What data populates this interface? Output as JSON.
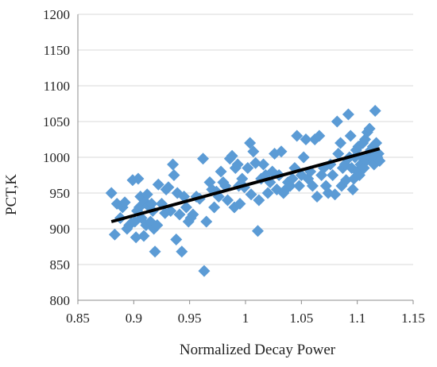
{
  "chart_data": {
    "type": "scatter",
    "title": "",
    "xlabel": "Normalized Decay Power",
    "ylabel": "PCT,K",
    "xlim": [
      0.85,
      1.15
    ],
    "ylim": [
      800,
      1200
    ],
    "x_ticks": [
      "0.85",
      "0.9",
      "0.95",
      "1",
      "1.05",
      "1.1",
      "1.15"
    ],
    "y_ticks": [
      "800",
      "850",
      "900",
      "950",
      "1000",
      "1050",
      "1100",
      "1150",
      "1200"
    ],
    "x_tick_values": [
      0.85,
      0.9,
      0.95,
      1.0,
      1.05,
      1.1,
      1.15
    ],
    "y_tick_values": [
      800,
      850,
      900,
      950,
      1000,
      1050,
      1100,
      1150,
      1200
    ],
    "grid": "horizontal",
    "legend": "none",
    "marker_color": "#5b9bd5",
    "trendline_color": "#000000",
    "trendline": {
      "x": [
        0.88,
        1.12
      ],
      "y": [
        910,
        1012
      ]
    },
    "series": [
      {
        "marker": "diamond",
        "points": [
          [
            0.88,
            950
          ],
          [
            0.883,
            892
          ],
          [
            0.885,
            935
          ],
          [
            0.888,
            915
          ],
          [
            0.89,
            930
          ],
          [
            0.892,
            937
          ],
          [
            0.894,
            900
          ],
          [
            0.896,
            905
          ],
          [
            0.898,
            908
          ],
          [
            0.899,
            968
          ],
          [
            0.901,
            910
          ],
          [
            0.902,
            888
          ],
          [
            0.903,
            925
          ],
          [
            0.904,
            970
          ],
          [
            0.905,
            930
          ],
          [
            0.906,
            945
          ],
          [
            0.907,
            915
          ],
          [
            0.909,
            890
          ],
          [
            0.91,
            938
          ],
          [
            0.911,
            905
          ],
          [
            0.912,
            948
          ],
          [
            0.913,
            932
          ],
          [
            0.915,
            910
          ],
          [
            0.916,
            935
          ],
          [
            0.917,
            925
          ],
          [
            0.918,
            900
          ],
          [
            0.919,
            868
          ],
          [
            0.921,
            905
          ],
          [
            0.922,
            962
          ],
          [
            0.925,
            935
          ],
          [
            0.928,
            922
          ],
          [
            0.929,
            955
          ],
          [
            0.931,
            958
          ],
          [
            0.933,
            925
          ],
          [
            0.935,
            990
          ],
          [
            0.936,
            975
          ],
          [
            0.938,
            885
          ],
          [
            0.939,
            950
          ],
          [
            0.941,
            920
          ],
          [
            0.943,
            868
          ],
          [
            0.945,
            945
          ],
          [
            0.947,
            930
          ],
          [
            0.949,
            910
          ],
          [
            0.951,
            915
          ],
          [
            0.953,
            920
          ],
          [
            0.956,
            945
          ],
          [
            0.959,
            942
          ],
          [
            0.962,
            998
          ],
          [
            0.963,
            841
          ],
          [
            0.965,
            910
          ],
          [
            0.968,
            965
          ],
          [
            0.97,
            955
          ],
          [
            0.972,
            930
          ],
          [
            0.974,
            952
          ],
          [
            0.976,
            945
          ],
          [
            0.978,
            980
          ],
          [
            0.98,
            965
          ],
          [
            0.982,
            960
          ],
          [
            0.984,
            940
          ],
          [
            0.986,
            998
          ],
          [
            0.988,
            1002
          ],
          [
            0.99,
            930
          ],
          [
            0.991,
            985
          ],
          [
            0.993,
            990
          ],
          [
            0.994,
            960
          ],
          [
            0.995,
            935
          ],
          [
            0.997,
            970
          ],
          [
            0.999,
            958
          ],
          [
            1.002,
            985
          ],
          [
            1.004,
            1020
          ],
          [
            1.005,
            948
          ],
          [
            1.007,
            1008
          ],
          [
            1.009,
            992
          ],
          [
            1.011,
            897
          ],
          [
            1.012,
            940
          ],
          [
            1.014,
            970
          ],
          [
            1.016,
            990
          ],
          [
            1.018,
            975
          ],
          [
            1.02,
            950
          ],
          [
            1.022,
            965
          ],
          [
            1.024,
            980
          ],
          [
            1.026,
            1005
          ],
          [
            1.028,
            955
          ],
          [
            1.03,
            975
          ],
          [
            1.032,
            1008
          ],
          [
            1.034,
            950
          ],
          [
            1.036,
            955
          ],
          [
            1.038,
            965
          ],
          [
            1.04,
            960
          ],
          [
            1.042,
            970
          ],
          [
            1.044,
            985
          ],
          [
            1.046,
            1030
          ],
          [
            1.048,
            960
          ],
          [
            1.05,
            975
          ],
          [
            1.052,
            1000
          ],
          [
            1.054,
            1025
          ],
          [
            1.056,
            970
          ],
          [
            1.058,
            980
          ],
          [
            1.06,
            960
          ],
          [
            1.062,
            1025
          ],
          [
            1.064,
            945
          ],
          [
            1.066,
            1030
          ],
          [
            1.068,
            975
          ],
          [
            1.07,
            985
          ],
          [
            1.072,
            960
          ],
          [
            1.074,
            950
          ],
          [
            1.076,
            990
          ],
          [
            1.078,
            975
          ],
          [
            1.08,
            948
          ],
          [
            1.082,
            1050
          ],
          [
            1.083,
            1005
          ],
          [
            1.085,
            1020
          ],
          [
            1.086,
            960
          ],
          [
            1.087,
            985
          ],
          [
            1.089,
            990
          ],
          [
            1.09,
            968
          ],
          [
            1.092,
            1060
          ],
          [
            1.093,
            1000
          ],
          [
            1.094,
            1030
          ],
          [
            1.095,
            985
          ],
          [
            1.096,
            955
          ],
          [
            1.097,
            970
          ],
          [
            1.098,
            1000
          ],
          [
            1.099,
            1010
          ],
          [
            1.1,
            980
          ],
          [
            1.101,
            1015
          ],
          [
            1.102,
            975
          ],
          [
            1.103,
            990
          ],
          [
            1.104,
            1000
          ],
          [
            1.105,
            1020
          ],
          [
            1.106,
            985
          ],
          [
            1.107,
            1025
          ],
          [
            1.108,
            995
          ],
          [
            1.109,
            1035
          ],
          [
            1.11,
            1000
          ],
          [
            1.111,
            1040
          ],
          [
            1.112,
            1010
          ],
          [
            1.113,
            998
          ],
          [
            1.114,
            1015
          ],
          [
            1.115,
            990
          ],
          [
            1.116,
            1065
          ],
          [
            1.117,
            1020
          ],
          [
            1.118,
            1000
          ],
          [
            1.119,
            1005
          ],
          [
            1.12,
            995
          ]
        ]
      }
    ]
  }
}
